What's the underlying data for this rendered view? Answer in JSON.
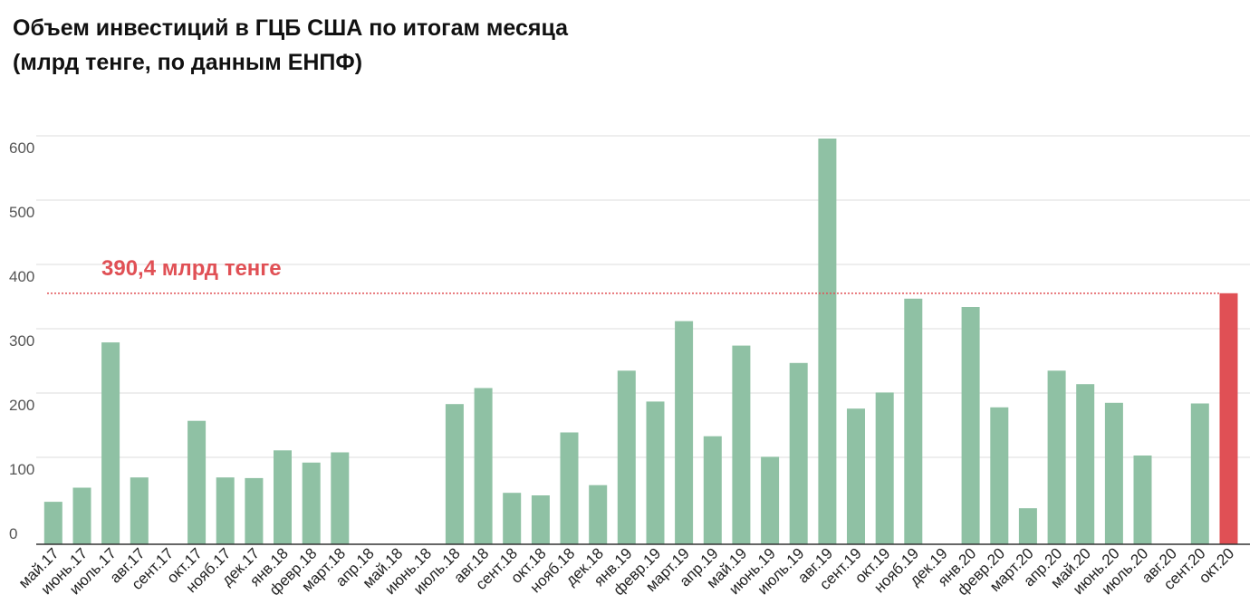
{
  "chart_data": {
    "type": "bar",
    "title_line1": "Объем инвестиций в ГЦБ США по итогам месяца",
    "title_line2": "(млрд тенге, по данным ЕНПФ)",
    "xlabel": "",
    "ylabel": "",
    "ylim": [
      0,
      640
    ],
    "yticks": [
      0,
      100,
      200,
      300,
      400,
      500,
      600
    ],
    "grid": true,
    "categories": [
      "май.17",
      "июнь.17",
      "июль.17",
      "авг.17",
      "сент.17",
      "окт.17",
      "нояб.17",
      "дек.17",
      "янв.18",
      "февр.18",
      "март.18",
      "апр.18",
      "май.18",
      "июнь.18",
      "июль.18",
      "авг.18",
      "сент.18",
      "окт.18",
      "нояб.18",
      "дек.18",
      "янв.19",
      "февр.19",
      "март.19",
      "апр.19",
      "май.19",
      "июнь.19",
      "июль.19",
      "авг.19",
      "сент.19",
      "окт.19",
      "нояб.19",
      "дек.19",
      "янв.20",
      "февр.20",
      "март.20",
      "апр.20",
      "май.20",
      "июнь.20",
      "июль.20",
      "авг.20",
      "сент.20",
      "окт.20"
    ],
    "values": [
      66,
      88,
      314,
      104,
      0,
      192,
      104,
      103,
      146,
      127,
      143,
      0,
      0,
      0,
      218,
      243,
      80,
      76,
      174,
      92,
      270,
      222,
      347,
      168,
      309,
      136,
      282,
      631,
      211,
      236,
      382,
      0,
      369,
      213,
      56,
      270,
      249,
      220,
      138,
      0,
      219,
      390.4
    ],
    "colors": {
      "bar": "#8fc1a4",
      "highlight": "#e05055",
      "grid": "#dddddd",
      "axis": "#333333"
    },
    "highlight_index": 41,
    "reference_line": {
      "value": 390.4,
      "label": "390,4 млрд тенге",
      "color": "#e05055"
    }
  }
}
